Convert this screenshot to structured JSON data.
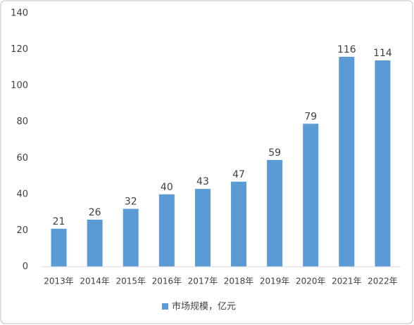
{
  "chart_data": {
    "type": "bar",
    "categories": [
      "2013年",
      "2014年",
      "2015年",
      "2016年",
      "2017年",
      "2018年",
      "2019年",
      "2020年",
      "2021年",
      "2022年"
    ],
    "series": [
      {
        "name": "市场规模，亿元",
        "color": "#5b9bd5",
        "values": [
          21,
          26,
          32,
          40,
          43,
          47,
          59,
          79,
          116,
          114
        ]
      }
    ],
    "ylim": [
      0,
      140
    ],
    "yticks": [
      0,
      20,
      40,
      60,
      80,
      100,
      120,
      140
    ],
    "grid": false,
    "legend": "bottom",
    "data_labels": true
  }
}
